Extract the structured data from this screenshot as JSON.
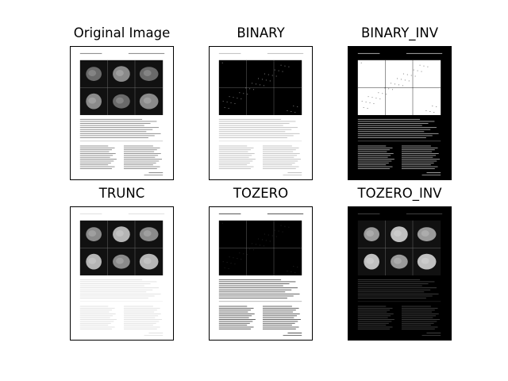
{
  "figure": {
    "panels": [
      {
        "id": "orig",
        "title": "Original Image",
        "mode": "original",
        "thumbnail": "document-thumbnail"
      },
      {
        "id": "binary",
        "title": "BINARY",
        "mode": "binary",
        "thumbnail": "document-thumbnail"
      },
      {
        "id": "binary_inv",
        "title": "BINARY_INV",
        "mode": "binary_inv",
        "thumbnail": "document-thumbnail"
      },
      {
        "id": "trunc",
        "title": "TRUNC",
        "mode": "trunc",
        "thumbnail": "document-thumbnail"
      },
      {
        "id": "tozero",
        "title": "TOZERO",
        "mode": "tozero",
        "thumbnail": "document-thumbnail"
      },
      {
        "id": "tozero_inv",
        "title": "TOZERO_INV",
        "mode": "tozero_inv",
        "thumbnail": "document-thumbnail"
      }
    ]
  }
}
